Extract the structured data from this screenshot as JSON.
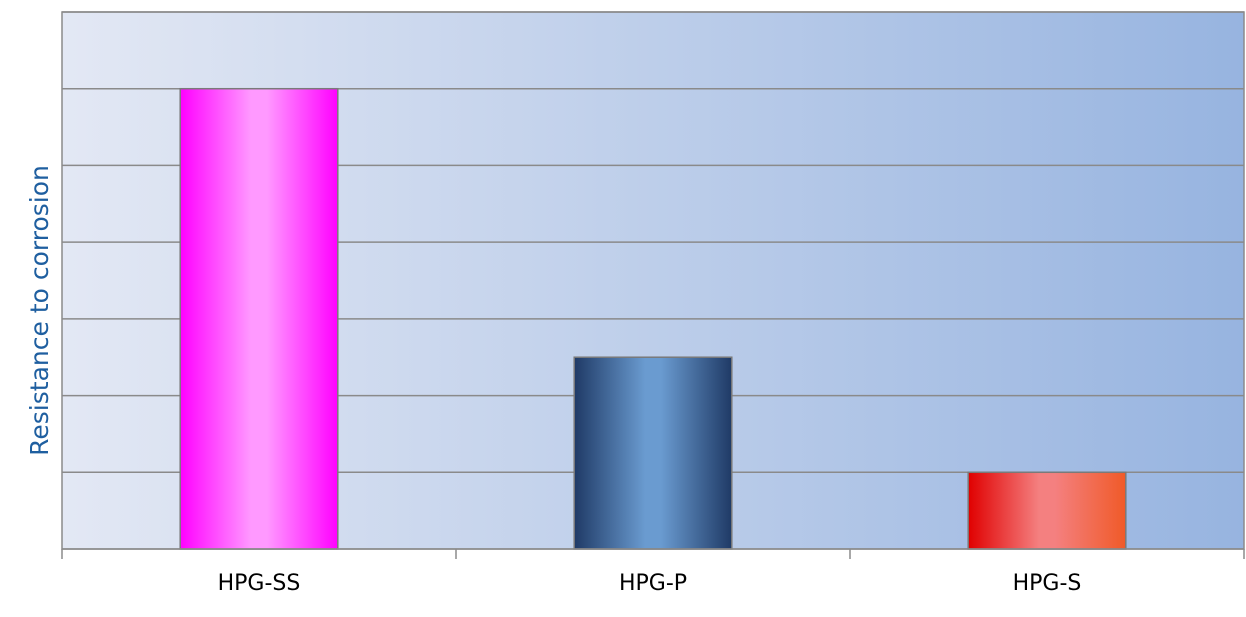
{
  "chart_data": {
    "type": "bar",
    "categories": [
      "HPG-SS",
      "HPG-P",
      "HPG-S"
    ],
    "values": [
      6,
      2.5,
      1
    ],
    "xlabel": "",
    "ylabel": "Resistance to corrosion",
    "ylim": [
      0,
      7
    ],
    "grid": true,
    "legend": "none",
    "bar_colors": [
      {
        "dark": "#ff00ff",
        "light": "#ff99ff"
      },
      {
        "dark": "#1f3a66",
        "light": "#6a9bd0"
      },
      {
        "dark": "#e00000",
        "light": "#f48080",
        "edge": "#f05a28"
      }
    ],
    "plot_bg": {
      "left": "#e3e8f4",
      "right": "#97b4e0"
    },
    "ylabel_color": "#1f5fa0"
  }
}
